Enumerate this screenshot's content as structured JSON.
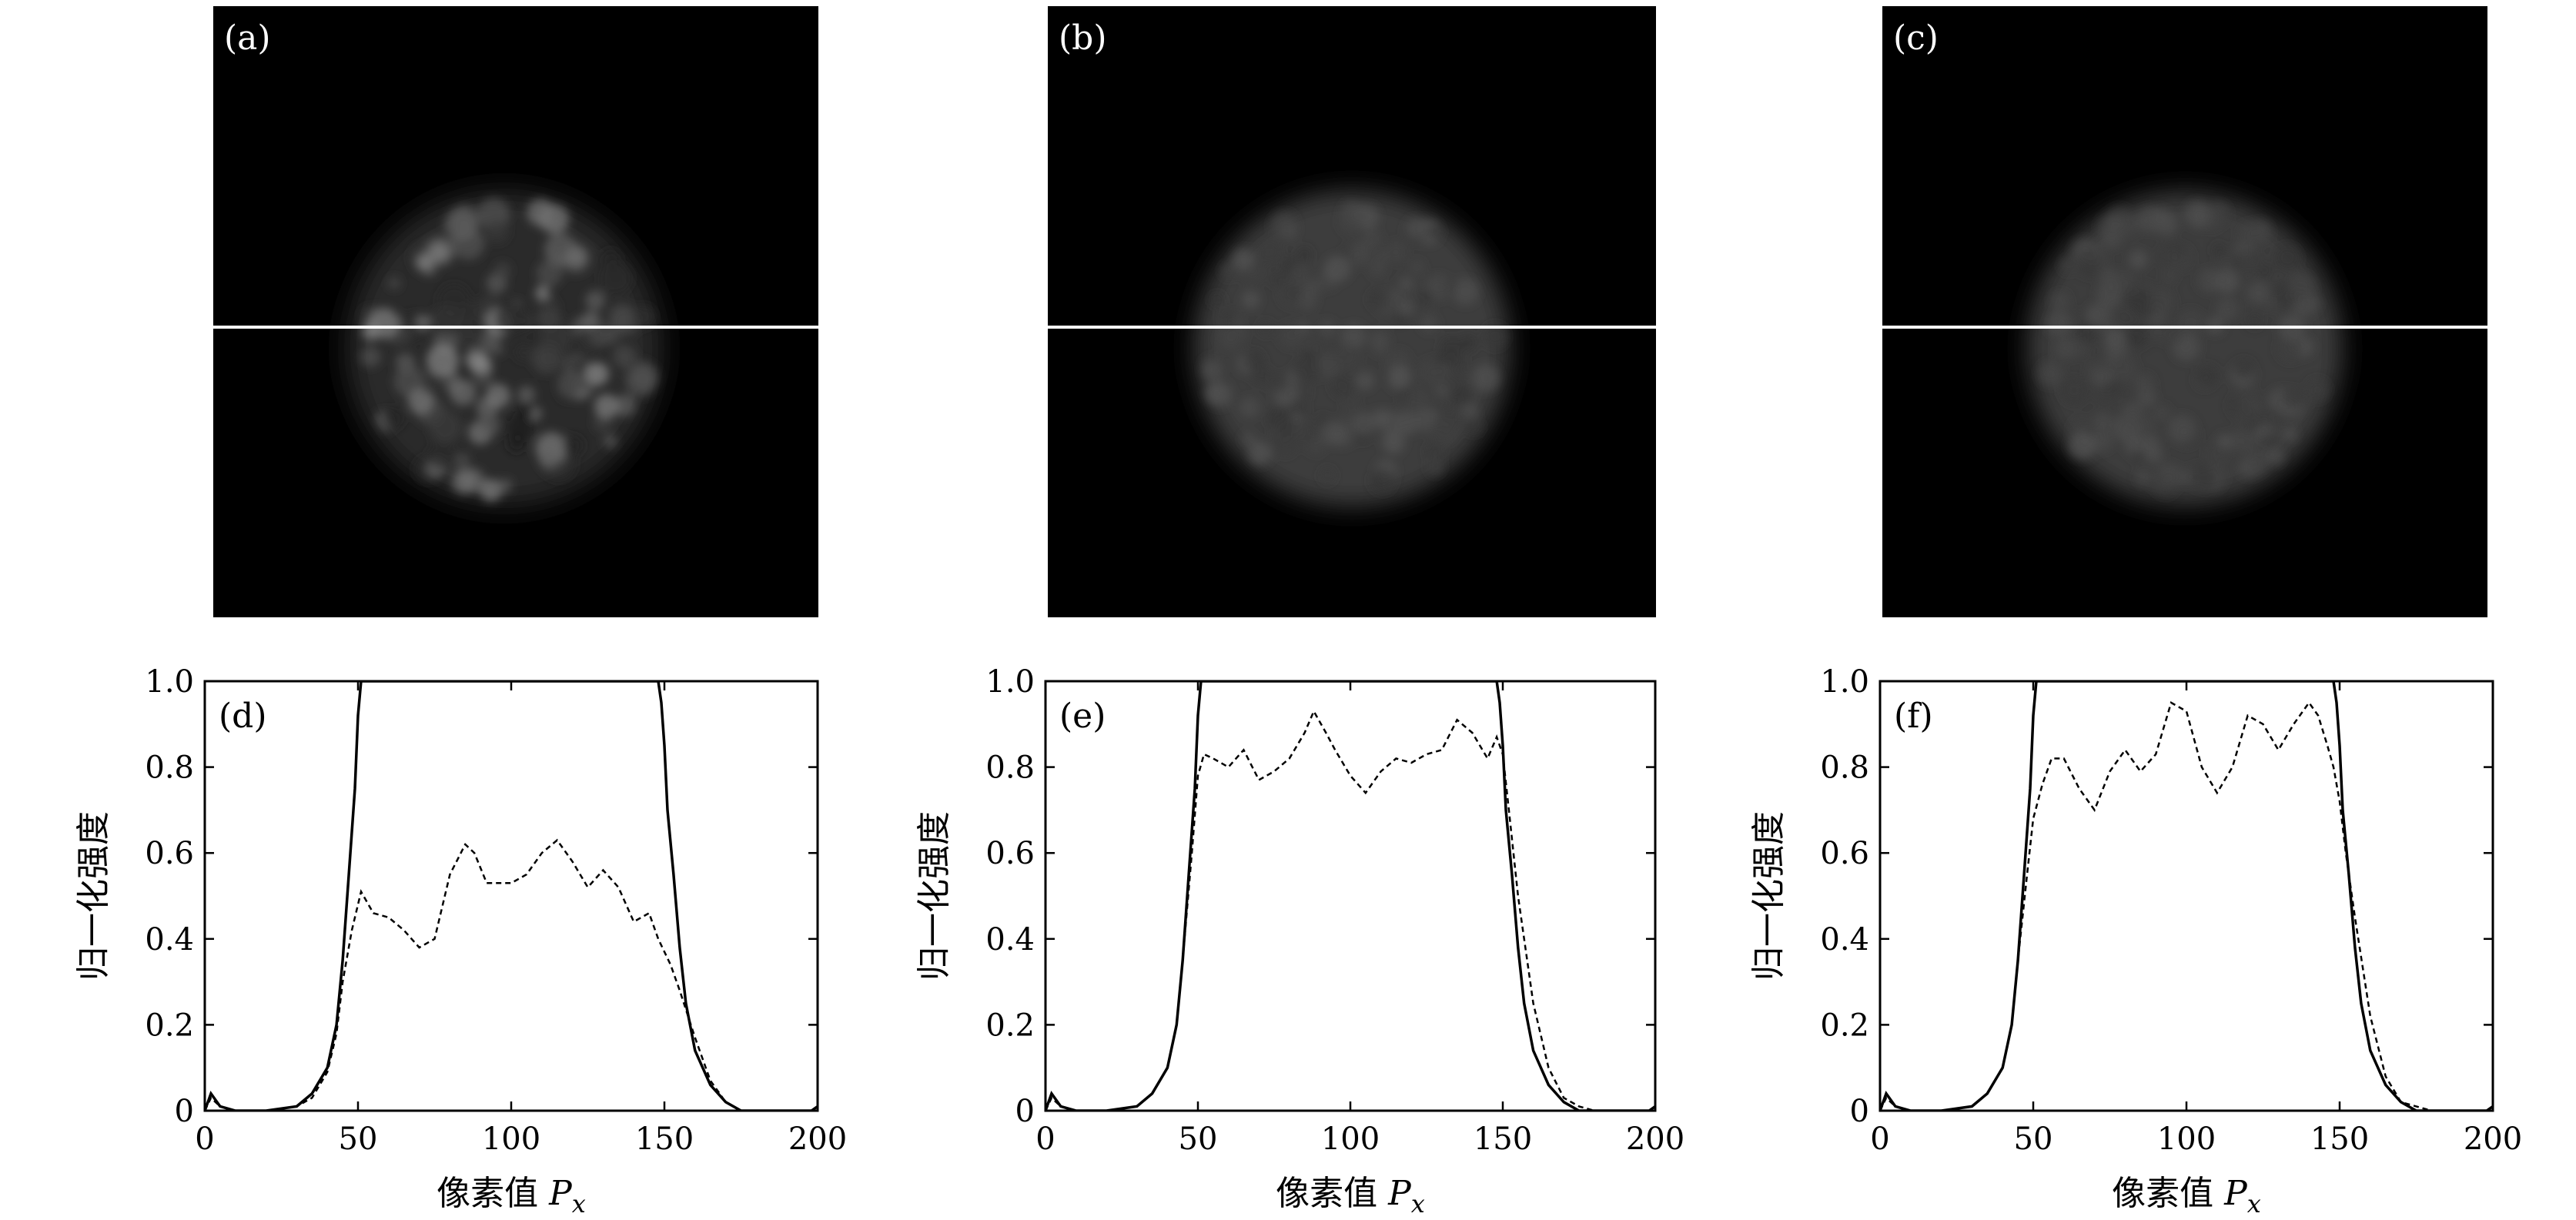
{
  "image_panels": [
    {
      "label": "(a)",
      "image": "speckled-circular-spot",
      "speckle": "strong"
    },
    {
      "label": "(b)",
      "image": "smoothed-circular-spot",
      "speckle": "weak"
    },
    {
      "label": "(c)",
      "image": "smoothed-circular-spot",
      "speckle": "weak"
    }
  ],
  "chart_data": [
    {
      "type": "line",
      "label": "(d)",
      "xlabel": "像素值 P_x",
      "ylabel": "归一化强度",
      "xlim": [
        0,
        200
      ],
      "ylim": [
        0,
        1.0
      ],
      "xticks": [
        "0",
        "50",
        "100",
        "150",
        "200"
      ],
      "yticks": [
        "0",
        "0.2",
        "0.4",
        "0.6",
        "0.8",
        "1.0"
      ],
      "series": [
        {
          "style": "solid",
          "x": [
            0,
            2,
            5,
            10,
            20,
            30,
            35,
            40,
            43,
            45,
            47,
            49,
            50,
            51,
            52,
            55,
            100,
            145,
            148,
            149,
            150,
            151,
            153,
            155,
            157,
            160,
            165,
            170,
            175,
            180,
            190,
            198,
            200
          ],
          "y": [
            0.0,
            0.04,
            0.01,
            0.0,
            0.0,
            0.01,
            0.04,
            0.1,
            0.2,
            0.35,
            0.55,
            0.75,
            0.92,
            1.0,
            1.0,
            1.0,
            1.0,
            1.0,
            1.0,
            0.95,
            0.85,
            0.7,
            0.55,
            0.38,
            0.25,
            0.14,
            0.06,
            0.02,
            0.0,
            0.0,
            0.0,
            0.0,
            0.01
          ]
        },
        {
          "style": "dashed",
          "x": [
            0,
            2,
            5,
            10,
            20,
            30,
            35,
            40,
            43,
            45,
            48,
            51,
            55,
            60,
            65,
            70,
            75,
            80,
            85,
            88,
            92,
            100,
            105,
            110,
            115,
            120,
            125,
            130,
            135,
            140,
            145,
            148,
            152,
            155,
            160,
            165,
            170,
            175,
            180,
            190,
            200
          ],
          "y": [
            0.0,
            0.03,
            0.01,
            0.0,
            0.0,
            0.01,
            0.03,
            0.09,
            0.18,
            0.3,
            0.42,
            0.51,
            0.46,
            0.45,
            0.42,
            0.38,
            0.4,
            0.55,
            0.62,
            0.6,
            0.53,
            0.53,
            0.55,
            0.6,
            0.63,
            0.58,
            0.52,
            0.56,
            0.52,
            0.44,
            0.46,
            0.4,
            0.34,
            0.28,
            0.17,
            0.07,
            0.02,
            0.0,
            0.0,
            0.0,
            0.0
          ]
        }
      ]
    },
    {
      "type": "line",
      "label": "(e)",
      "xlabel": "像素值 P_x",
      "ylabel": "归一化强度",
      "xlim": [
        0,
        200
      ],
      "ylim": [
        0,
        1.0
      ],
      "xticks": [
        "0",
        "50",
        "100",
        "150",
        "200"
      ],
      "yticks": [
        "0",
        "0.2",
        "0.4",
        "0.6",
        "0.8",
        "1.0"
      ],
      "series": [
        {
          "style": "solid",
          "x": [
            0,
            2,
            5,
            10,
            20,
            30,
            35,
            40,
            43,
            45,
            47,
            49,
            50,
            51,
            52,
            55,
            100,
            145,
            148,
            149,
            150,
            151,
            153,
            155,
            157,
            160,
            165,
            170,
            175,
            180,
            190,
            198,
            200
          ],
          "y": [
            0.0,
            0.04,
            0.01,
            0.0,
            0.0,
            0.01,
            0.04,
            0.1,
            0.2,
            0.35,
            0.55,
            0.75,
            0.92,
            1.0,
            1.0,
            1.0,
            1.0,
            1.0,
            1.0,
            0.95,
            0.85,
            0.7,
            0.55,
            0.38,
            0.25,
            0.14,
            0.06,
            0.02,
            0.0,
            0.0,
            0.0,
            0.0,
            0.01
          ]
        },
        {
          "style": "dashed",
          "x": [
            0,
            2,
            5,
            10,
            20,
            30,
            35,
            40,
            43,
            45,
            48,
            50,
            52,
            55,
            60,
            65,
            70,
            75,
            80,
            85,
            88,
            92,
            95,
            100,
            105,
            110,
            115,
            120,
            125,
            130,
            135,
            140,
            145,
            148,
            150,
            152,
            155,
            160,
            165,
            170,
            175,
            180,
            190,
            200
          ],
          "y": [
            0.0,
            0.03,
            0.01,
            0.0,
            0.0,
            0.01,
            0.04,
            0.1,
            0.2,
            0.35,
            0.6,
            0.78,
            0.83,
            0.82,
            0.8,
            0.84,
            0.77,
            0.79,
            0.82,
            0.88,
            0.93,
            0.88,
            0.84,
            0.78,
            0.74,
            0.79,
            0.82,
            0.81,
            0.83,
            0.84,
            0.91,
            0.88,
            0.82,
            0.87,
            0.83,
            0.7,
            0.5,
            0.25,
            0.1,
            0.03,
            0.01,
            0.0,
            0.0,
            0.0
          ]
        }
      ]
    },
    {
      "type": "line",
      "label": "(f)",
      "xlabel": "像素值 P_x",
      "ylabel": "归一化强度",
      "xlim": [
        0,
        200
      ],
      "ylim": [
        0,
        1.0
      ],
      "xticks": [
        "0",
        "50",
        "100",
        "150",
        "200"
      ],
      "yticks": [
        "0",
        "0.2",
        "0.4",
        "0.6",
        "0.8",
        "1.0"
      ],
      "series": [
        {
          "style": "solid",
          "x": [
            0,
            2,
            5,
            10,
            20,
            30,
            35,
            40,
            43,
            45,
            47,
            49,
            50,
            51,
            52,
            55,
            100,
            145,
            148,
            149,
            150,
            151,
            153,
            155,
            157,
            160,
            165,
            170,
            175,
            180,
            190,
            198,
            200
          ],
          "y": [
            0.0,
            0.04,
            0.01,
            0.0,
            0.0,
            0.01,
            0.04,
            0.1,
            0.2,
            0.35,
            0.55,
            0.75,
            0.92,
            1.0,
            1.0,
            1.0,
            1.0,
            1.0,
            1.0,
            0.95,
            0.85,
            0.7,
            0.55,
            0.38,
            0.25,
            0.14,
            0.06,
            0.02,
            0.0,
            0.0,
            0.0,
            0.0,
            0.01
          ]
        },
        {
          "style": "dashed",
          "x": [
            0,
            2,
            5,
            10,
            20,
            30,
            35,
            40,
            43,
            45,
            48,
            50,
            53,
            56,
            60,
            65,
            70,
            75,
            80,
            85,
            90,
            95,
            100,
            105,
            110,
            115,
            120,
            125,
            130,
            135,
            140,
            143,
            146,
            148,
            150,
            152,
            155,
            160,
            165,
            170,
            175,
            180,
            190,
            200
          ],
          "y": [
            0.0,
            0.03,
            0.01,
            0.0,
            0.0,
            0.01,
            0.04,
            0.1,
            0.2,
            0.35,
            0.55,
            0.68,
            0.76,
            0.82,
            0.82,
            0.75,
            0.7,
            0.79,
            0.84,
            0.79,
            0.83,
            0.95,
            0.93,
            0.8,
            0.74,
            0.8,
            0.92,
            0.9,
            0.84,
            0.9,
            0.95,
            0.92,
            0.85,
            0.8,
            0.72,
            0.6,
            0.45,
            0.22,
            0.08,
            0.02,
            0.01,
            0.0,
            0.0,
            0.0
          ]
        }
      ]
    }
  ]
}
